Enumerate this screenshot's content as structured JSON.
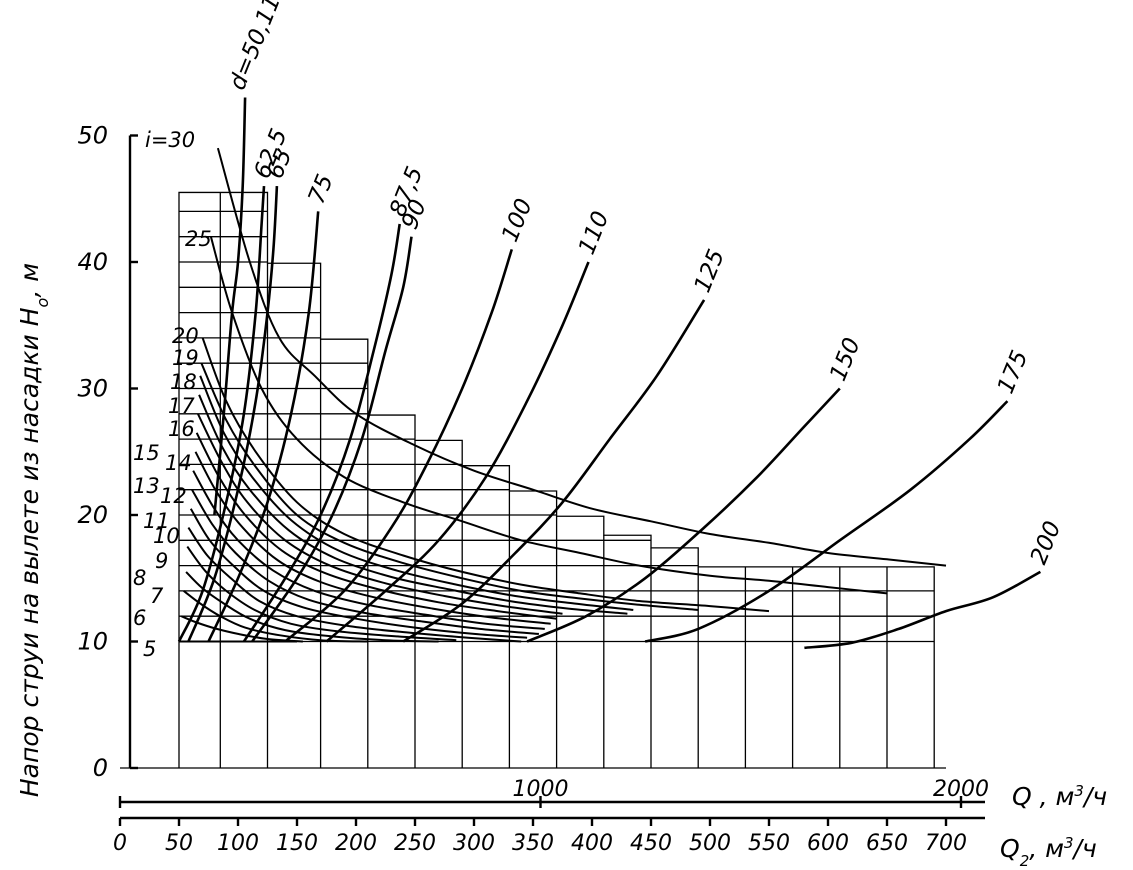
{
  "chart_data": {
    "type": "line",
    "ylabel": "Напор струи на вылете из насадки H",
    "ylabel_sub": "o",
    "ylabel_unit": ", м",
    "y_ticks": [
      "0",
      "10",
      "20",
      "30",
      "40",
      "50"
    ],
    "ylim": [
      0,
      50
    ],
    "x1_label": "Q , м",
    "x1_label_sup": "3",
    "x1_label_tail": "/ч",
    "x1_ticks": [
      "1000",
      "2000"
    ],
    "x2_label": "Q",
    "x2_label_sub": "2",
    "x2_label_tail": ", м",
    "x2_label_sup": "3",
    "x2_label_end": "/ч",
    "x2_ticks": [
      "0",
      "50",
      "100",
      "150",
      "200",
      "250",
      "300",
      "350",
      "400",
      "450",
      "500",
      "550",
      "600",
      "650",
      "700"
    ],
    "x2lim": [
      0,
      700
    ],
    "d_prefix": "d=",
    "d_curves": [
      {
        "label": "50,11",
        "points": [
          [
            80,
            20
          ],
          [
            88,
            28
          ],
          [
            95,
            36
          ],
          [
            100,
            40
          ],
          [
            104,
            46
          ],
          [
            106,
            53
          ]
        ]
      },
      {
        "label": "62,5",
        "points": [
          [
            50,
            10
          ],
          [
            70,
            14
          ],
          [
            90,
            21
          ],
          [
            105,
            28
          ],
          [
            115,
            36
          ],
          [
            120,
            43
          ],
          [
            122,
            46
          ]
        ]
      },
      {
        "label": "65",
        "points": [
          [
            58,
            10
          ],
          [
            80,
            15
          ],
          [
            100,
            22
          ],
          [
            115,
            29
          ],
          [
            125,
            36
          ],
          [
            130,
            41
          ],
          [
            133,
            46
          ]
        ]
      },
      {
        "label": "75",
        "points": [
          [
            75,
            10
          ],
          [
            100,
            15
          ],
          [
            125,
            21
          ],
          [
            145,
            28
          ],
          [
            160,
            36
          ],
          [
            168,
            44
          ]
        ]
      },
      {
        "label": "87,5",
        "points": [
          [
            105,
            10
          ],
          [
            140,
            15
          ],
          [
            170,
            20
          ],
          [
            195,
            26
          ],
          [
            215,
            33
          ],
          [
            230,
            39
          ],
          [
            237,
            43
          ]
        ]
      },
      {
        "label": "90",
        "points": [
          [
            112,
            10
          ],
          [
            150,
            15
          ],
          [
            180,
            20
          ],
          [
            205,
            26
          ],
          [
            225,
            33
          ],
          [
            240,
            38
          ],
          [
            247,
            42
          ]
        ]
      },
      {
        "label": "100",
        "points": [
          [
            140,
            10
          ],
          [
            190,
            14
          ],
          [
            230,
            19
          ],
          [
            260,
            24
          ],
          [
            290,
            30
          ],
          [
            315,
            36
          ],
          [
            332,
            41
          ]
        ]
      },
      {
        "label": "110",
        "points": [
          [
            175,
            10
          ],
          [
            225,
            14
          ],
          [
            270,
            18
          ],
          [
            310,
            23
          ],
          [
            345,
            29
          ],
          [
            375,
            35
          ],
          [
            397,
            40
          ]
        ]
      },
      {
        "label": "125",
        "points": [
          [
            240,
            10
          ],
          [
            290,
            13
          ],
          [
            335,
            17
          ],
          [
            375,
            21
          ],
          [
            415,
            26
          ],
          [
            455,
            31
          ],
          [
            495,
            37
          ]
        ]
      },
      {
        "label": "150",
        "points": [
          [
            345,
            10
          ],
          [
            395,
            12
          ],
          [
            445,
            15
          ],
          [
            495,
            19
          ],
          [
            540,
            23
          ],
          [
            580,
            27
          ],
          [
            610,
            30
          ]
        ]
      },
      {
        "label": "175",
        "points": [
          [
            445,
            10
          ],
          [
            490,
            11
          ],
          [
            550,
            14
          ],
          [
            610,
            18
          ],
          [
            670,
            22
          ],
          [
            720,
            26
          ],
          [
            752,
            29
          ]
        ]
      },
      {
        "label": "200",
        "points": [
          [
            580,
            9.5
          ],
          [
            620,
            9.9
          ],
          [
            660,
            11
          ],
          [
            700,
            12.4
          ],
          [
            740,
            13.5
          ],
          [
            780,
            15.5
          ]
        ]
      }
    ],
    "i_prefix": "i=",
    "i_curves": [
      {
        "label": "30",
        "points": [
          [
            83,
            49
          ],
          [
            110,
            40
          ],
          [
            135,
            34
          ],
          [
            165,
            31
          ],
          [
            200,
            28
          ],
          [
            250,
            25.5
          ],
          [
            300,
            23.5
          ],
          [
            350,
            22
          ],
          [
            400,
            20.5
          ],
          [
            450,
            19.5
          ],
          [
            500,
            18.5
          ],
          [
            550,
            17.8
          ],
          [
            600,
            17
          ],
          [
            650,
            16.5
          ],
          [
            700,
            16
          ]
        ]
      },
      {
        "label": "25",
        "points": [
          [
            77,
            42
          ],
          [
            95,
            36
          ],
          [
            120,
            30
          ],
          [
            150,
            26
          ],
          [
            190,
            23
          ],
          [
            240,
            21
          ],
          [
            290,
            19.5
          ],
          [
            340,
            18
          ],
          [
            390,
            17
          ],
          [
            440,
            16
          ],
          [
            500,
            15.2
          ],
          [
            550,
            14.8
          ],
          [
            600,
            14.3
          ],
          [
            650,
            13.8
          ]
        ]
      },
      {
        "label": "20",
        "points": [
          [
            70,
            34
          ],
          [
            90,
            29
          ],
          [
            115,
            25
          ],
          [
            150,
            21
          ],
          [
            190,
            18.5
          ],
          [
            240,
            16.8
          ],
          [
            290,
            15.5
          ],
          [
            340,
            14.5
          ],
          [
            390,
            13.8
          ],
          [
            440,
            13.2
          ],
          [
            500,
            12.8
          ],
          [
            550,
            12.4
          ]
        ]
      },
      {
        "label": "19",
        "points": [
          [
            69,
            32
          ],
          [
            90,
            27.5
          ],
          [
            115,
            23.8
          ],
          [
            150,
            20
          ],
          [
            190,
            17.8
          ],
          [
            240,
            16.2
          ],
          [
            290,
            15
          ],
          [
            340,
            14
          ],
          [
            390,
            13.4
          ],
          [
            440,
            12.9
          ],
          [
            490,
            12.5
          ]
        ]
      },
      {
        "label": "18",
        "points": [
          [
            68,
            31
          ],
          [
            88,
            26.5
          ],
          [
            112,
            23
          ],
          [
            145,
            19.6
          ],
          [
            185,
            17.2
          ],
          [
            235,
            15.6
          ],
          [
            285,
            14.5
          ],
          [
            335,
            13.6
          ],
          [
            385,
            13
          ],
          [
            435,
            12.5
          ]
        ]
      },
      {
        "label": "17",
        "points": [
          [
            67,
            29.5
          ],
          [
            87,
            25.3
          ],
          [
            110,
            22
          ],
          [
            143,
            18.8
          ],
          [
            182,
            16.6
          ],
          [
            230,
            15.1
          ],
          [
            280,
            14.1
          ],
          [
            330,
            13.2
          ],
          [
            380,
            12.6
          ],
          [
            430,
            12.2
          ]
        ]
      },
      {
        "label": "16",
        "points": [
          [
            66,
            28
          ],
          [
            86,
            24.2
          ],
          [
            108,
            21
          ],
          [
            140,
            18
          ],
          [
            178,
            16
          ],
          [
            225,
            14.6
          ],
          [
            275,
            13.6
          ],
          [
            325,
            12.8
          ],
          [
            375,
            12.2
          ]
        ]
      },
      {
        "label": "15",
        "points": [
          [
            65,
            26.5
          ],
          [
            84,
            23
          ],
          [
            106,
            20
          ],
          [
            137,
            17.2
          ],
          [
            174,
            15.4
          ],
          [
            220,
            14.1
          ],
          [
            270,
            13.1
          ],
          [
            320,
            12.4
          ],
          [
            370,
            11.8
          ]
        ]
      },
      {
        "label": "14",
        "points": [
          [
            64,
            25
          ],
          [
            82,
            21.8
          ],
          [
            104,
            19
          ],
          [
            134,
            16.4
          ],
          [
            170,
            14.7
          ],
          [
            215,
            13.5
          ],
          [
            265,
            12.6
          ],
          [
            315,
            11.9
          ],
          [
            365,
            11.4
          ]
        ]
      },
      {
        "label": "13",
        "points": [
          [
            62,
            23.5
          ],
          [
            80,
            20.5
          ],
          [
            100,
            18
          ],
          [
            130,
            15.6
          ],
          [
            165,
            14
          ],
          [
            210,
            12.9
          ],
          [
            260,
            12.1
          ],
          [
            310,
            11.4
          ],
          [
            360,
            11
          ]
        ]
      },
      {
        "label": "12",
        "points": [
          [
            61,
            22
          ],
          [
            78,
            19.3
          ],
          [
            98,
            17
          ],
          [
            126,
            14.8
          ],
          [
            160,
            13.3
          ],
          [
            205,
            12.3
          ],
          [
            255,
            11.6
          ],
          [
            305,
            11
          ],
          [
            355,
            10.6
          ]
        ]
      },
      {
        "label": "11",
        "points": [
          [
            60,
            20.5
          ],
          [
            76,
            18
          ],
          [
            96,
            16
          ],
          [
            122,
            14
          ],
          [
            155,
            12.7
          ],
          [
            200,
            11.8
          ],
          [
            250,
            11.1
          ],
          [
            300,
            10.6
          ],
          [
            345,
            10.3
          ]
        ]
      },
      {
        "label": "10",
        "points": [
          [
            58,
            19
          ],
          [
            74,
            16.8
          ],
          [
            94,
            15
          ],
          [
            118,
            13.2
          ],
          [
            150,
            12
          ],
          [
            195,
            11.2
          ],
          [
            245,
            10.7
          ],
          [
            295,
            10.3
          ],
          [
            340,
            10
          ]
        ]
      },
      {
        "label": "9",
        "points": [
          [
            57,
            17.5
          ],
          [
            72,
            15.6
          ],
          [
            90,
            14
          ],
          [
            114,
            12.5
          ],
          [
            145,
            11.4
          ],
          [
            185,
            10.8
          ],
          [
            235,
            10.4
          ],
          [
            285,
            10.1
          ]
        ]
      },
      {
        "label": "8",
        "points": [
          [
            56,
            15.5
          ],
          [
            70,
            14.2
          ],
          [
            88,
            13
          ],
          [
            110,
            11.8
          ],
          [
            140,
            10.9
          ],
          [
            180,
            10.4
          ],
          [
            225,
            10.1
          ],
          [
            270,
            10
          ]
        ]
      },
      {
        "label": "7",
        "points": [
          [
            54,
            14
          ],
          [
            68,
            13
          ],
          [
            85,
            12
          ],
          [
            106,
            11.1
          ],
          [
            135,
            10.5
          ],
          [
            170,
            10.1
          ],
          [
            210,
            10
          ]
        ]
      },
      {
        "label": "6",
        "points": [
          [
            52,
            12
          ],
          [
            65,
            11.5
          ],
          [
            82,
            11
          ],
          [
            100,
            10.6
          ],
          [
            125,
            10.2
          ],
          [
            155,
            10
          ]
        ]
      },
      {
        "label": "5",
        "points": [
          [
            50,
            10
          ],
          [
            70,
            10
          ],
          [
            100,
            10
          ],
          [
            150,
            10
          ]
        ]
      }
    ]
  }
}
